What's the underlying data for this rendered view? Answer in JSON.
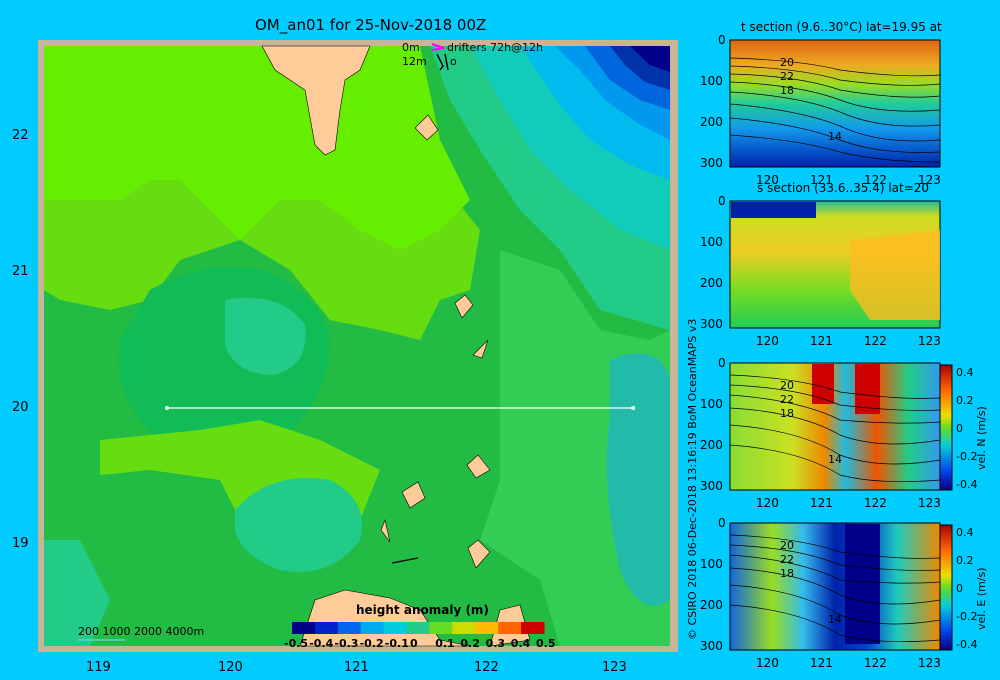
{
  "map": {
    "title": "OM_an01 for 25-Nov-2018 00Z",
    "legend_0m": "0m",
    "legend_12m": "12m",
    "legend_drifters": "drifters 72h@12h",
    "legend_o": "o",
    "lat_labels": [
      "22",
      "21",
      "20",
      "19"
    ],
    "lon_labels": [
      "119",
      "120",
      "121",
      "122",
      "123"
    ],
    "depth_legend": "200  1000  2000  4000m",
    "colorbar_title": "height anomaly (m)",
    "colorbar_ticks": [
      "-0.5",
      "-0.4",
      "-0.3",
      "-0.2",
      "-0.1",
      "0",
      "0.1",
      "0.2",
      "0.3",
      "0.4",
      "0.5"
    ],
    "section_line_lat": 20,
    "section_line_lon": [
      119.5,
      123.2
    ]
  },
  "credit": "© CSIRO 2018   06-Dec-2018 13:16:19 BoM OceanMAPS v3",
  "panels": {
    "temp": {
      "title": "t section (9.6..30°C) lat=19.95 at",
      "y_ticks": [
        "0",
        "100",
        "200",
        "300"
      ],
      "x_ticks": [
        "120",
        "121",
        "122",
        "123"
      ],
      "contour_labels": [
        "20",
        "22",
        "18",
        "14"
      ]
    },
    "salt": {
      "title": "s section (33.6..35.4) lat=20",
      "y_ticks": [
        "0",
        "100",
        "200",
        "300"
      ],
      "x_ticks": [
        "120",
        "121",
        "122",
        "123"
      ]
    },
    "vn": {
      "y_ticks": [
        "0",
        "100",
        "200",
        "300"
      ],
      "x_ticks": [
        "120",
        "121",
        "122",
        "123"
      ],
      "contour_labels": [
        "20",
        "22",
        "18",
        "14"
      ],
      "cbar_label": "vel. N  (m/s)",
      "cbar_ticks": [
        "0.4",
        "0.2",
        "0",
        "-0.2",
        "-0.4"
      ]
    },
    "ve": {
      "y_ticks": [
        "0",
        "100",
        "200",
        "300"
      ],
      "x_ticks": [
        "120",
        "121",
        "122",
        "123"
      ],
      "contour_labels": [
        "20",
        "22",
        "18",
        "14"
      ],
      "cbar_label": "vel. E  (m/s)",
      "cbar_ticks": [
        "0.4",
        "0.2",
        "0",
        "-0.2",
        "-0.4"
      ]
    }
  },
  "colors": {
    "background": "#00ccff",
    "land": "#ffcc99",
    "frame": "#c8b496",
    "section_line": "#ffffff"
  }
}
